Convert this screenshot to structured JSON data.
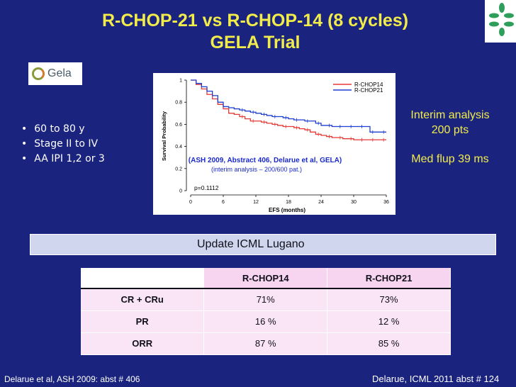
{
  "title": {
    "line1": "R-CHOP-21 vs R-CHOP-14 (8 cycles)",
    "line2": "GELA Trial"
  },
  "logo": {
    "text": "Gela"
  },
  "bullets": [
    "60 to 80 y",
    "Stage II to IV",
    "AA IPI 1,2 or 3"
  ],
  "interim": {
    "line1": "Interim analysis",
    "line2": "200 pts",
    "line3": "Med flup 39 ms"
  },
  "update_label": "Update ICML Lugano",
  "table": {
    "headers": [
      "",
      "R-CHOP14",
      "R-CHOP21"
    ],
    "rows": [
      {
        "label": "CR + CRu",
        "chop14": "71%",
        "chop21": "73%"
      },
      {
        "label": "PR",
        "chop14": "16 %",
        "chop21": "12 %"
      },
      {
        "label": "ORR",
        "chop14": "87 %",
        "chop21": "85 %"
      }
    ]
  },
  "footer": {
    "left": "Delarue  et al, ASH 2009: abst #  406",
    "right": "Delarue, ICML 2011 abst # 124"
  },
  "colors": {
    "background": "#1a237e",
    "title": "#f2ec4a",
    "chop14": "#e53935",
    "chop21": "#1e3fcf"
  },
  "chart_data": {
    "type": "line",
    "ylabel": "Survival Probability",
    "xlabel": "EFS (months)",
    "xlim": [
      0,
      36
    ],
    "ylim": [
      0,
      1
    ],
    "xticks": [
      "0",
      "6",
      "12",
      "18",
      "24",
      "30",
      "36"
    ],
    "yticks": [
      "0",
      "0.2",
      "0.4",
      "0.6",
      "0.8",
      "1"
    ],
    "legend": [
      "R-CHOP14",
      "R-CHOP21"
    ],
    "annotation_line1": "(ASH 2009, Abstract 406, Delarue et al, GELA)",
    "annotation_line2": "(interim analysis – 200/600 pat.)",
    "pvalue": "p=0.1112",
    "series": [
      {
        "name": "R-CHOP14",
        "x": [
          0,
          1,
          2,
          3,
          4,
          5,
          6,
          7,
          8,
          9,
          10,
          11,
          12,
          13,
          14,
          15,
          16,
          17,
          18,
          19,
          20,
          21,
          22,
          23,
          24,
          25,
          26,
          27,
          28,
          29,
          30,
          31,
          32,
          33,
          34,
          35,
          36
        ],
        "y": [
          1.0,
          0.96,
          0.92,
          0.87,
          0.83,
          0.78,
          0.74,
          0.7,
          0.69,
          0.67,
          0.65,
          0.63,
          0.63,
          0.62,
          0.61,
          0.6,
          0.59,
          0.58,
          0.58,
          0.57,
          0.56,
          0.55,
          0.53,
          0.51,
          0.5,
          0.49,
          0.48,
          0.48,
          0.47,
          0.47,
          0.46,
          0.46,
          0.46,
          0.46,
          0.46,
          0.46,
          0.46
        ]
      },
      {
        "name": "R-CHOP21",
        "x": [
          0,
          1,
          2,
          3,
          4,
          5,
          6,
          7,
          8,
          9,
          10,
          11,
          12,
          13,
          14,
          15,
          16,
          17,
          18,
          19,
          20,
          21,
          22,
          23,
          24,
          25,
          26,
          27,
          28,
          29,
          30,
          31,
          32,
          33,
          34,
          35,
          36
        ],
        "y": [
          1.0,
          0.97,
          0.94,
          0.9,
          0.86,
          0.8,
          0.76,
          0.75,
          0.74,
          0.73,
          0.72,
          0.71,
          0.7,
          0.69,
          0.68,
          0.67,
          0.67,
          0.66,
          0.65,
          0.64,
          0.64,
          0.63,
          0.63,
          0.61,
          0.59,
          0.59,
          0.58,
          0.58,
          0.58,
          0.58,
          0.58,
          0.58,
          0.58,
          0.53,
          0.53,
          0.53,
          0.53
        ]
      }
    ]
  }
}
